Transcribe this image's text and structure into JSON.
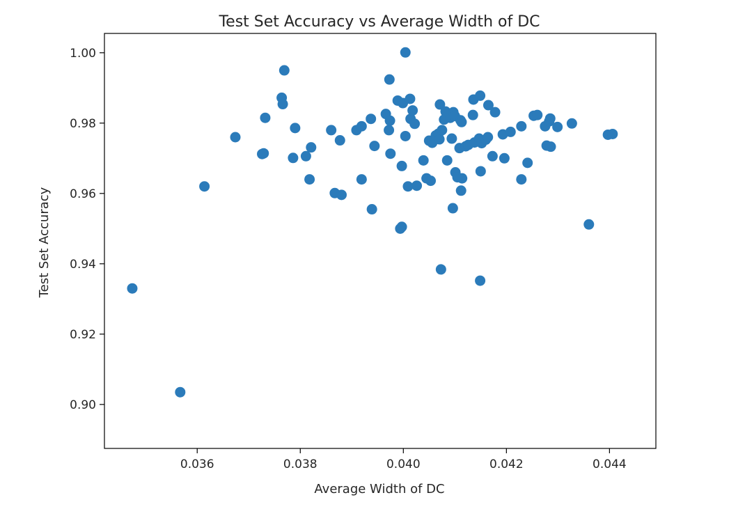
{
  "chart_data": {
    "type": "scatter",
    "title": "Test Set Accuracy vs Average Width of DC",
    "xlabel": "Average Width of DC",
    "ylabel": "Test Set Accuracy",
    "xlim": [
      0.0342,
      0.0449
    ],
    "ylim": [
      0.8875,
      1.0055
    ],
    "xticks": [
      0.036,
      0.038,
      0.04,
      0.042,
      0.044
    ],
    "xtick_labels": [
      "0.036",
      "0.038",
      "0.040",
      "0.042",
      "0.044"
    ],
    "yticks": [
      0.9,
      0.92,
      0.94,
      0.96,
      0.98,
      1.0
    ],
    "ytick_labels": [
      "0.90",
      "0.92",
      "0.94",
      "0.96",
      "0.98",
      "1.00"
    ],
    "grid": false,
    "marker_color": "#2b7bba",
    "series": [
      {
        "points": [
          [
            0.03474,
            0.933
          ],
          [
            0.03567,
            0.9035
          ],
          [
            0.03614,
            0.962
          ],
          [
            0.03674,
            0.976
          ],
          [
            0.03726,
            0.9712
          ],
          [
            0.03729,
            0.9714
          ],
          [
            0.03732,
            0.9815
          ],
          [
            0.03764,
            0.9872
          ],
          [
            0.03766,
            0.9854
          ],
          [
            0.03769,
            0.995
          ],
          [
            0.03786,
            0.9701
          ],
          [
            0.0379,
            0.9786
          ],
          [
            0.03811,
            0.9706
          ],
          [
            0.03818,
            0.964
          ],
          [
            0.03821,
            0.9731
          ],
          [
            0.0386,
            0.978
          ],
          [
            0.03867,
            0.9601
          ],
          [
            0.03877,
            0.9751
          ],
          [
            0.0388,
            0.9596
          ],
          [
            0.03909,
            0.978
          ],
          [
            0.03919,
            0.9791
          ],
          [
            0.03919,
            0.964
          ],
          [
            0.03937,
            0.9812
          ],
          [
            0.03939,
            0.9555
          ],
          [
            0.03944,
            0.9735
          ],
          [
            0.03966,
            0.9826
          ],
          [
            0.03973,
            0.9924
          ],
          [
            0.03972,
            0.978
          ],
          [
            0.03974,
            0.9807
          ],
          [
            0.03975,
            0.9713
          ],
          [
            0.03989,
            0.9864
          ],
          [
            0.03994,
            0.95
          ],
          [
            0.03997,
            0.9505
          ],
          [
            0.03997,
            0.9678
          ],
          [
            0.03999,
            0.9857
          ],
          [
            0.04004,
            0.9763
          ],
          [
            0.04004,
            1.0001
          ],
          [
            0.04009,
            0.962
          ],
          [
            0.04013,
            0.9869
          ],
          [
            0.04014,
            0.9812
          ],
          [
            0.04018,
            0.9836
          ],
          [
            0.04022,
            0.9798
          ],
          [
            0.04026,
            0.9622
          ],
          [
            0.04039,
            0.9694
          ],
          [
            0.04045,
            0.9643
          ],
          [
            0.0405,
            0.975
          ],
          [
            0.04053,
            0.9636
          ],
          [
            0.04056,
            0.9744
          ],
          [
            0.04063,
            0.9765
          ],
          [
            0.04068,
            0.977
          ],
          [
            0.0407,
            0.9754
          ],
          [
            0.04071,
            0.9853
          ],
          [
            0.04073,
            0.9384
          ],
          [
            0.04075,
            0.978
          ],
          [
            0.04079,
            0.981
          ],
          [
            0.04082,
            0.9833
          ],
          [
            0.04085,
            0.9694
          ],
          [
            0.04091,
            0.9815
          ],
          [
            0.04094,
            0.9756
          ],
          [
            0.04096,
            0.9558
          ],
          [
            0.04097,
            0.9831
          ],
          [
            0.041,
            0.982
          ],
          [
            0.04101,
            0.966
          ],
          [
            0.04105,
            0.9646
          ],
          [
            0.04109,
            0.9729
          ],
          [
            0.04111,
            0.9808
          ],
          [
            0.04112,
            0.9608
          ],
          [
            0.04113,
            0.9803
          ],
          [
            0.04114,
            0.9643
          ],
          [
            0.04121,
            0.9734
          ],
          [
            0.04126,
            0.9738
          ],
          [
            0.04135,
            0.9823
          ],
          [
            0.04136,
            0.9867
          ],
          [
            0.04138,
            0.9745
          ],
          [
            0.04147,
            0.9756
          ],
          [
            0.04149,
            0.9352
          ],
          [
            0.04149,
            0.9878
          ],
          [
            0.0415,
            0.9663
          ],
          [
            0.04152,
            0.9743
          ],
          [
            0.0416,
            0.9753
          ],
          [
            0.04164,
            0.976
          ],
          [
            0.04165,
            0.9851
          ],
          [
            0.04173,
            0.9706
          ],
          [
            0.04178,
            0.9831
          ],
          [
            0.04193,
            0.9768
          ],
          [
            0.04196,
            0.97
          ],
          [
            0.04208,
            0.9775
          ],
          [
            0.04229,
            0.9791
          ],
          [
            0.04229,
            0.964
          ],
          [
            0.04241,
            0.9687
          ],
          [
            0.04253,
            0.9821
          ],
          [
            0.0426,
            0.9823
          ],
          [
            0.04275,
            0.9791
          ],
          [
            0.04278,
            0.9736
          ],
          [
            0.04283,
            0.9805
          ],
          [
            0.04285,
            0.9813
          ],
          [
            0.04286,
            0.9733
          ],
          [
            0.04299,
            0.9789
          ],
          [
            0.04327,
            0.9799
          ],
          [
            0.0436,
            0.9512
          ],
          [
            0.04397,
            0.9767
          ],
          [
            0.04406,
            0.9769
          ]
        ]
      }
    ]
  }
}
